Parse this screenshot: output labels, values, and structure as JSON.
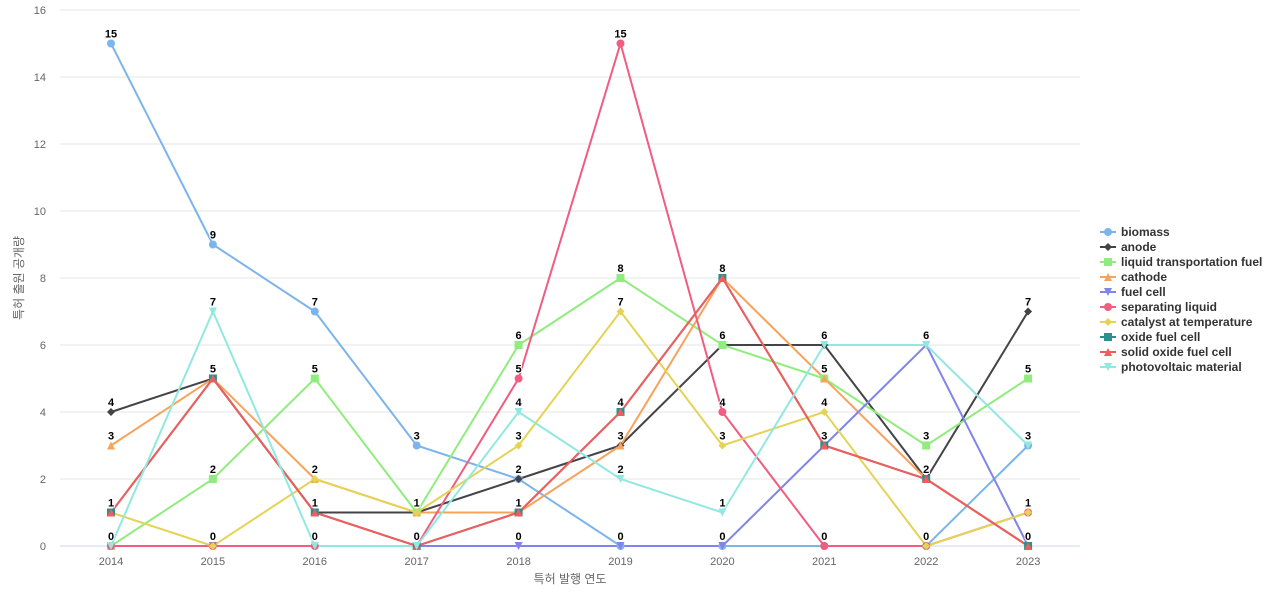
{
  "chart_data": {
    "type": "line",
    "xlabel": "특허 발행 연도",
    "ylabel": "특허 출원 공개량",
    "ylim": [
      0,
      16
    ],
    "yticks": [
      0,
      2,
      4,
      6,
      8,
      10,
      12,
      14,
      16
    ],
    "grid": true,
    "legend_position": "right",
    "x": [
      "2014",
      "2015",
      "2016",
      "2017",
      "2018",
      "2019",
      "2020",
      "2021",
      "2022",
      "2023"
    ],
    "series": [
      {
        "name": "biomass",
        "color": "#7cb5ec",
        "marker": "circle",
        "values": [
          15,
          9,
          7,
          3,
          2,
          0,
          0,
          0,
          0,
          3
        ]
      },
      {
        "name": "anode",
        "color": "#434348",
        "marker": "diamond",
        "values": [
          4,
          5,
          1,
          1,
          2,
          3,
          6,
          6,
          2,
          7
        ]
      },
      {
        "name": "liquid transportation fuel",
        "color": "#90ed7d",
        "marker": "square",
        "values": [
          0,
          2,
          5,
          1,
          6,
          8,
          6,
          5,
          3,
          5
        ]
      },
      {
        "name": "cathode",
        "color": "#f7a35c",
        "marker": "triangle",
        "values": [
          3,
          5,
          2,
          1,
          1,
          3,
          8,
          5,
          2,
          0
        ]
      },
      {
        "name": "fuel cell",
        "color": "#8085e9",
        "marker": "triangle-down",
        "values": [
          0,
          0,
          0,
          0,
          0,
          0,
          0,
          3,
          6,
          0
        ]
      },
      {
        "name": "separating liquid",
        "color": "#f15c80",
        "marker": "circle",
        "values": [
          0,
          0,
          0,
          0,
          5,
          15,
          4,
          0,
          0,
          1
        ]
      },
      {
        "name": "catalyst at temperature",
        "color": "#e4d354",
        "marker": "diamond",
        "values": [
          1,
          0,
          2,
          1,
          3,
          7,
          3,
          4,
          0,
          1
        ]
      },
      {
        "name": "oxide fuel cell",
        "color": "#2b908f",
        "marker": "square",
        "values": [
          1,
          5,
          1,
          0,
          1,
          4,
          8,
          3,
          2,
          0
        ]
      },
      {
        "name": "solid oxide fuel cell",
        "color": "#f45b5b",
        "marker": "triangle",
        "values": [
          1,
          5,
          1,
          0,
          1,
          4,
          8,
          3,
          2,
          0
        ]
      },
      {
        "name": "photovoltaic material",
        "color": "#91e8e1",
        "marker": "triangle-down",
        "values": [
          0,
          7,
          0,
          0,
          4,
          2,
          1,
          6,
          6,
          3
        ]
      }
    ]
  }
}
